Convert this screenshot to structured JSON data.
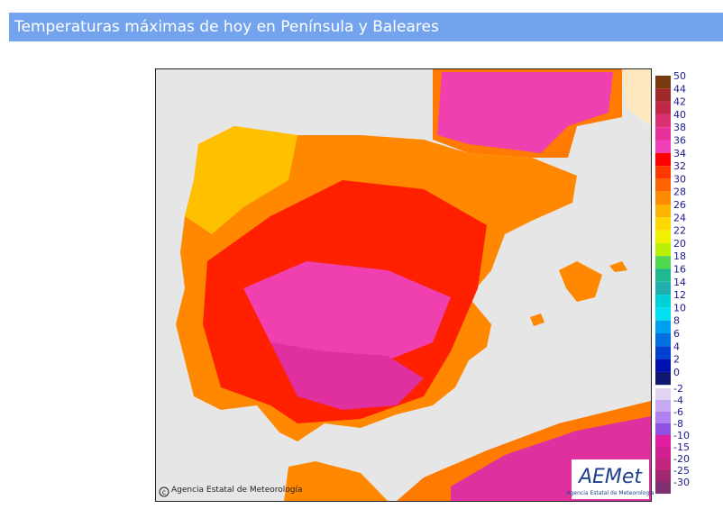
{
  "header": {
    "title": "Temperaturas máximas de hoy en Península y Baleares"
  },
  "map": {
    "credit": "Agencia Estatal de Meteorología",
    "logo": "AEMet",
    "logo_caption": "Agencia Estatal de Meteorología"
  },
  "legend": {
    "positive": [
      {
        "label": 50,
        "color": "#7a3a10"
      },
      {
        "label": 44,
        "color": "#a0282a"
      },
      {
        "label": 42,
        "color": "#c02848"
      },
      {
        "label": 40,
        "color": "#d83070"
      },
      {
        "label": 38,
        "color": "#e8309a"
      },
      {
        "label": 36,
        "color": "#f040b8"
      },
      {
        "label": 34,
        "color": "#ff0000"
      },
      {
        "label": 32,
        "color": "#ff3800"
      },
      {
        "label": 30,
        "color": "#ff6400"
      },
      {
        "label": 28,
        "color": "#ff8c00"
      },
      {
        "label": 26,
        "color": "#ffb400"
      },
      {
        "label": 24,
        "color": "#ffd800"
      },
      {
        "label": 22,
        "color": "#f0f000"
      },
      {
        "label": 20,
        "color": "#b8f000"
      },
      {
        "label": 18,
        "color": "#50d850"
      },
      {
        "label": 16,
        "color": "#20b890"
      },
      {
        "label": 14,
        "color": "#20b0b0"
      },
      {
        "label": 12,
        "color": "#00d0d8"
      },
      {
        "label": 10,
        "color": "#00e0f0"
      },
      {
        "label": 8,
        "color": "#00a0f0"
      },
      {
        "label": 6,
        "color": "#0070e0"
      },
      {
        "label": 4,
        "color": "#0040d0"
      },
      {
        "label": 2,
        "color": "#0010b0"
      },
      {
        "label": 0,
        "color": "#101870"
      }
    ],
    "negative": [
      {
        "label": -2,
        "color": "#e4d4f4"
      },
      {
        "label": -4,
        "color": "#c8a8f0"
      },
      {
        "label": -6,
        "color": "#b080f0"
      },
      {
        "label": -8,
        "color": "#9050e0"
      },
      {
        "label": -10,
        "color": "#e020a0"
      },
      {
        "label": -15,
        "color": "#d02090"
      },
      {
        "label": -20,
        "color": "#c02880"
      },
      {
        "label": -25,
        "color": "#a02870"
      },
      {
        "label": -30,
        "color": "#803070"
      }
    ]
  }
}
